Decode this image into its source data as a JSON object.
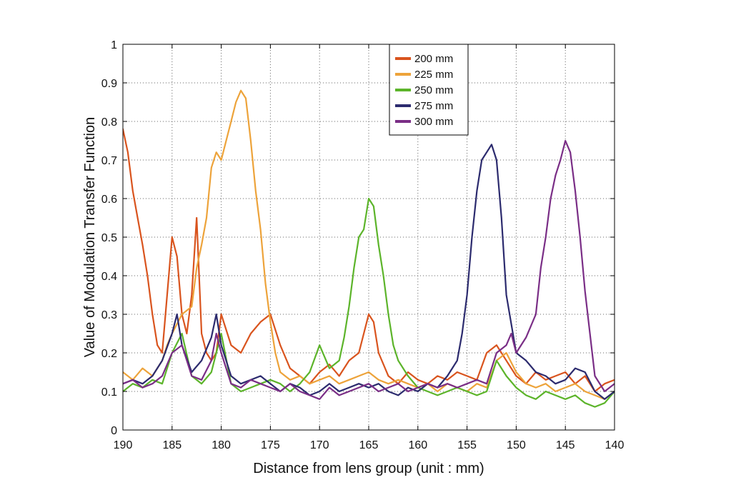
{
  "chart_data": {
    "type": "line",
    "title": "",
    "xlabel": "Distance from lens group (unit : mm)",
    "ylabel": "Value of Modulation Transfer Function",
    "xlim": [
      190,
      140
    ],
    "x_reversed": true,
    "ylim": [
      0,
      1
    ],
    "x_ticks": [
      190,
      185,
      180,
      175,
      170,
      165,
      160,
      155,
      150,
      145,
      140
    ],
    "y_ticks": [
      0,
      0.1,
      0.2,
      0.3,
      0.4,
      0.5,
      0.6,
      0.7,
      0.8,
      0.9,
      1
    ],
    "y_tick_labels": [
      "0",
      "0.1",
      "0.2",
      "0.3",
      "0.4",
      "0.5",
      "0.6",
      "0.7",
      "0.8",
      "0.9",
      "1"
    ],
    "grid": true,
    "grid_style": "dotted",
    "legend_position": "top-center",
    "series": [
      {
        "name": "200 mm",
        "color": "#d9541e",
        "x": [
          190,
          189.5,
          189,
          188.5,
          188,
          187.5,
          187,
          186.5,
          186,
          185.5,
          185,
          184.5,
          184,
          183.5,
          183,
          182.5,
          182,
          181.5,
          181,
          180.5,
          180,
          179,
          178,
          177,
          176,
          175,
          174,
          173,
          172,
          171,
          170,
          169,
          168,
          167,
          166,
          165,
          164.5,
          164,
          163,
          162,
          161,
          160,
          159,
          158,
          157,
          156,
          155,
          154,
          153,
          152,
          151,
          150,
          149,
          148,
          147,
          146,
          145,
          144,
          143,
          142,
          141,
          140
        ],
        "y": [
          0.78,
          0.72,
          0.62,
          0.55,
          0.48,
          0.4,
          0.3,
          0.22,
          0.2,
          0.35,
          0.5,
          0.45,
          0.3,
          0.25,
          0.35,
          0.55,
          0.25,
          0.2,
          0.18,
          0.2,
          0.3,
          0.22,
          0.2,
          0.25,
          0.28,
          0.3,
          0.22,
          0.16,
          0.14,
          0.12,
          0.15,
          0.17,
          0.14,
          0.18,
          0.2,
          0.3,
          0.28,
          0.2,
          0.14,
          0.12,
          0.15,
          0.13,
          0.12,
          0.14,
          0.13,
          0.15,
          0.14,
          0.13,
          0.2,
          0.22,
          0.18,
          0.14,
          0.12,
          0.15,
          0.13,
          0.14,
          0.15,
          0.12,
          0.14,
          0.1,
          0.12,
          0.13
        ]
      },
      {
        "name": "225 mm",
        "color": "#eda33a",
        "x": [
          190,
          189,
          188,
          187,
          186,
          185.5,
          185,
          184,
          183,
          182.5,
          182,
          181.5,
          181,
          180.5,
          180,
          179.5,
          179,
          178.5,
          178,
          177.5,
          177,
          176.5,
          176,
          175.5,
          175,
          174.5,
          174,
          173,
          172,
          171,
          170,
          169,
          168,
          167,
          166,
          165,
          164,
          163,
          162,
          161,
          160,
          159,
          158,
          157,
          156,
          155,
          154,
          153,
          152,
          151,
          150,
          149,
          148,
          147,
          146,
          145,
          144,
          143,
          142,
          141,
          140
        ],
        "y": [
          0.15,
          0.13,
          0.16,
          0.14,
          0.18,
          0.22,
          0.25,
          0.3,
          0.32,
          0.42,
          0.48,
          0.55,
          0.68,
          0.72,
          0.7,
          0.75,
          0.8,
          0.85,
          0.88,
          0.86,
          0.75,
          0.62,
          0.52,
          0.38,
          0.28,
          0.2,
          0.15,
          0.13,
          0.14,
          0.12,
          0.13,
          0.14,
          0.12,
          0.13,
          0.14,
          0.15,
          0.13,
          0.12,
          0.13,
          0.12,
          0.11,
          0.12,
          0.1,
          0.12,
          0.11,
          0.1,
          0.12,
          0.11,
          0.18,
          0.2,
          0.15,
          0.12,
          0.11,
          0.12,
          0.1,
          0.11,
          0.12,
          0.1,
          0.09,
          0.08,
          0.1
        ]
      },
      {
        "name": "250 mm",
        "color": "#5cb42a",
        "x": [
          190,
          189,
          188,
          187,
          186,
          185,
          184,
          183,
          182,
          181,
          180,
          179,
          178,
          177,
          176,
          175,
          174,
          173,
          172,
          171,
          170,
          169,
          168,
          167.5,
          167,
          166.5,
          166,
          165.5,
          165,
          164.5,
          164,
          163.5,
          163,
          162.5,
          162,
          161,
          160,
          159,
          158,
          157,
          156,
          155,
          154,
          153,
          152,
          151,
          150,
          149,
          148,
          147,
          146,
          145,
          144,
          143,
          142,
          141,
          140
        ],
        "y": [
          0.1,
          0.12,
          0.11,
          0.13,
          0.12,
          0.2,
          0.25,
          0.14,
          0.12,
          0.15,
          0.25,
          0.12,
          0.1,
          0.11,
          0.12,
          0.13,
          0.12,
          0.1,
          0.12,
          0.15,
          0.22,
          0.16,
          0.18,
          0.24,
          0.32,
          0.42,
          0.5,
          0.52,
          0.6,
          0.58,
          0.48,
          0.4,
          0.3,
          0.22,
          0.18,
          0.14,
          0.11,
          0.1,
          0.09,
          0.1,
          0.11,
          0.1,
          0.09,
          0.1,
          0.18,
          0.14,
          0.11,
          0.09,
          0.08,
          0.1,
          0.09,
          0.08,
          0.09,
          0.07,
          0.06,
          0.07,
          0.1
        ]
      },
      {
        "name": "275 mm",
        "color": "#2c2b6e",
        "x": [
          190,
          189,
          188,
          187,
          186,
          185,
          184.5,
          184,
          183,
          182,
          181,
          180.5,
          180,
          179,
          178,
          177,
          176,
          175,
          174,
          173,
          172,
          171,
          170,
          169,
          168,
          167,
          166,
          165,
          164,
          163,
          162,
          161,
          160,
          159,
          158,
          157,
          156,
          155.5,
          155,
          154.5,
          154,
          153.5,
          153,
          152.5,
          152,
          151.5,
          151,
          150,
          149,
          148,
          147,
          146,
          145,
          144,
          143,
          142,
          141,
          140
        ],
        "y": [
          0.12,
          0.13,
          0.12,
          0.14,
          0.18,
          0.25,
          0.3,
          0.22,
          0.15,
          0.18,
          0.24,
          0.3,
          0.22,
          0.14,
          0.12,
          0.13,
          0.14,
          0.12,
          0.1,
          0.12,
          0.11,
          0.09,
          0.1,
          0.12,
          0.1,
          0.11,
          0.12,
          0.11,
          0.12,
          0.1,
          0.09,
          0.11,
          0.1,
          0.12,
          0.11,
          0.14,
          0.18,
          0.25,
          0.35,
          0.5,
          0.62,
          0.7,
          0.72,
          0.74,
          0.7,
          0.55,
          0.35,
          0.2,
          0.18,
          0.15,
          0.14,
          0.12,
          0.13,
          0.16,
          0.15,
          0.1,
          0.08,
          0.1
        ]
      },
      {
        "name": "300 mm",
        "color": "#7a2e86",
        "x": [
          190,
          189,
          188,
          187,
          186,
          185,
          184,
          183,
          182,
          181,
          180.5,
          180,
          179,
          178,
          177,
          176,
          175,
          174,
          173,
          172,
          171,
          170,
          169,
          168,
          167,
          166,
          165,
          164,
          163,
          162,
          161,
          160,
          159,
          158,
          157,
          156,
          155,
          154,
          153,
          152,
          151,
          150.5,
          150,
          149,
          148,
          147.5,
          147,
          146.5,
          146,
          145.5,
          145,
          144.5,
          144,
          143.5,
          143,
          142.5,
          142,
          141,
          140
        ],
        "y": [
          0.12,
          0.13,
          0.11,
          0.12,
          0.14,
          0.2,
          0.22,
          0.14,
          0.13,
          0.18,
          0.25,
          0.2,
          0.12,
          0.11,
          0.13,
          0.12,
          0.11,
          0.1,
          0.12,
          0.1,
          0.09,
          0.08,
          0.11,
          0.09,
          0.1,
          0.11,
          0.12,
          0.1,
          0.11,
          0.12,
          0.1,
          0.11,
          0.12,
          0.11,
          0.12,
          0.11,
          0.12,
          0.13,
          0.12,
          0.2,
          0.22,
          0.25,
          0.2,
          0.24,
          0.3,
          0.42,
          0.5,
          0.6,
          0.66,
          0.7,
          0.75,
          0.72,
          0.62,
          0.5,
          0.36,
          0.25,
          0.14,
          0.1,
          0.12
        ]
      }
    ]
  }
}
